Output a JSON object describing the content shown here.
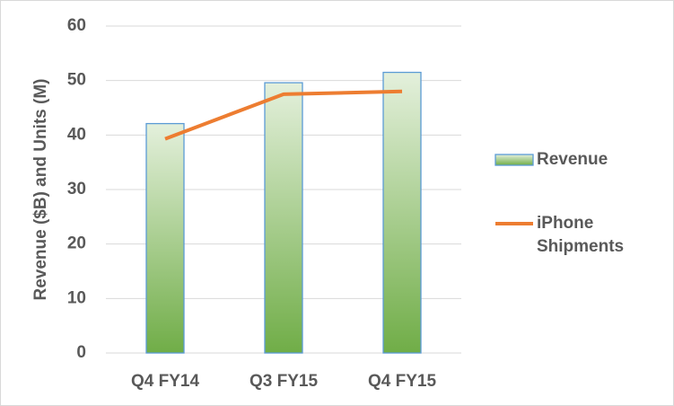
{
  "chart_data": {
    "type": "bar",
    "y_label": "Revenue ($B) and Units (M)",
    "categories": [
      "Q4 FY14",
      "Q3 FY15",
      "Q4 FY15"
    ],
    "series": [
      {
        "name": "Revenue",
        "type": "bar",
        "color": "#70ad47",
        "values": [
          42.1,
          49.6,
          51.5
        ]
      },
      {
        "name": "iPhone Shipments",
        "type": "line",
        "color": "#ed7d31",
        "values": [
          39.3,
          47.5,
          48.0
        ]
      }
    ],
    "ylim": [
      0,
      60
    ],
    "yticks": [
      0,
      10,
      20,
      30,
      40,
      50,
      60
    ],
    "grid": true
  }
}
